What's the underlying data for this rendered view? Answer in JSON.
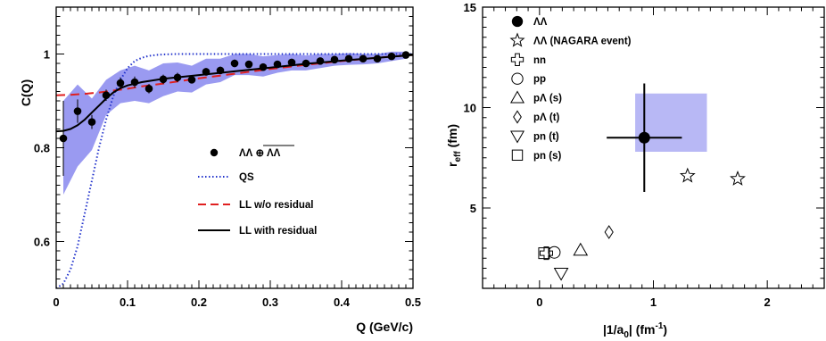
{
  "chart_data": [
    {
      "type": "line",
      "xlabel": "Q (GeV/c)",
      "ylabel": "C(Q)",
      "xlim": [
        0,
        0.5
      ],
      "ylim": [
        0.5,
        1.1
      ],
      "xticks": [
        "0",
        "0.1",
        "0.2",
        "0.3",
        "0.4",
        "0.5"
      ],
      "yticks": [
        "0.6",
        "0.8",
        "1"
      ],
      "grid": false,
      "legend_position": "center-right",
      "series": [
        {
          "name": "ΛΛ ⊕ ΛΛ",
          "kind": "points",
          "color": "#000000",
          "x": [
            0.01,
            0.03,
            0.05,
            0.07,
            0.09,
            0.11,
            0.13,
            0.15,
            0.17,
            0.19,
            0.21,
            0.23,
            0.25,
            0.27,
            0.29,
            0.31,
            0.33,
            0.35,
            0.37,
            0.39,
            0.41,
            0.43,
            0.45,
            0.47,
            0.49
          ],
          "y": [
            0.82,
            0.878,
            0.855,
            0.912,
            0.938,
            0.94,
            0.926,
            0.946,
            0.95,
            0.945,
            0.962,
            0.965,
            0.98,
            0.978,
            0.972,
            0.978,
            0.982,
            0.98,
            0.985,
            0.988,
            0.99,
            0.99,
            0.99,
            0.995,
            0.998
          ],
          "yerr": [
            0.08,
            0.025,
            0.015,
            0.012,
            0.012,
            0.012,
            0.01,
            0.01,
            0.01,
            0.008,
            0.008,
            0.008,
            0.008,
            0.007,
            0.007,
            0.006,
            0.006,
            0.006,
            0.005,
            0.005,
            0.005,
            0.005,
            0.005,
            0.005,
            0.005
          ],
          "band_lo": [
            0.7,
            0.76,
            0.795,
            0.87,
            0.895,
            0.9,
            0.895,
            0.91,
            0.92,
            0.918,
            0.935,
            0.94,
            0.955,
            0.955,
            0.952,
            0.96,
            0.965,
            0.965,
            0.97,
            0.975,
            0.977,
            0.978,
            0.98,
            0.985,
            0.99
          ],
          "band_hi": [
            0.9,
            0.935,
            0.905,
            0.945,
            0.965,
            0.975,
            0.965,
            0.98,
            0.982,
            0.975,
            0.99,
            0.99,
            1.0,
            1.0,
            0.995,
            0.998,
            1.0,
            0.997,
            1.0,
            1.0,
            1.002,
            1.0,
            1.0,
            1.005,
            1.005
          ]
        },
        {
          "name": "QS",
          "kind": "line",
          "dash": "dotted",
          "color": "#2233cc",
          "x": [
            0.0,
            0.01,
            0.02,
            0.03,
            0.04,
            0.05,
            0.06,
            0.07,
            0.08,
            0.09,
            0.1,
            0.11,
            0.12,
            0.13,
            0.14,
            0.15,
            0.17,
            0.2,
            0.3,
            0.4,
            0.5
          ],
          "y": [
            0.5,
            0.51,
            0.54,
            0.59,
            0.66,
            0.73,
            0.8,
            0.86,
            0.91,
            0.945,
            0.97,
            0.985,
            0.992,
            0.996,
            0.998,
            0.999,
            1.0,
            1.0,
            1.0,
            1.0,
            1.0
          ]
        },
        {
          "name": "LL w/o residual",
          "kind": "line",
          "dash": "dashed",
          "color": "#e02020",
          "x": [
            0.0,
            0.02,
            0.04,
            0.06,
            0.08,
            0.1,
            0.12,
            0.15,
            0.2,
            0.25,
            0.3,
            0.35,
            0.4,
            0.45,
            0.5
          ],
          "y": [
            0.912,
            0.913,
            0.915,
            0.918,
            0.922,
            0.926,
            0.931,
            0.937,
            0.948,
            0.958,
            0.968,
            0.977,
            0.985,
            0.992,
            0.998
          ]
        },
        {
          "name": "LL with residual",
          "kind": "line",
          "dash": "solid",
          "color": "#000000",
          "x": [
            0.0,
            0.01,
            0.02,
            0.03,
            0.04,
            0.05,
            0.06,
            0.07,
            0.08,
            0.09,
            0.1,
            0.12,
            0.15,
            0.2,
            0.25,
            0.3,
            0.35,
            0.4,
            0.45,
            0.5
          ],
          "y": [
            0.835,
            0.836,
            0.84,
            0.848,
            0.86,
            0.875,
            0.89,
            0.905,
            0.918,
            0.927,
            0.933,
            0.94,
            0.947,
            0.955,
            0.963,
            0.971,
            0.979,
            0.986,
            0.992,
            0.998
          ]
        }
      ]
    },
    {
      "type": "scatter",
      "xlabel": "|1/a0| (fm-1)",
      "xlabel_main": "|1/a",
      "xlabel_sub": "0",
      "xlabel_end": "| (fm",
      "xlabel_sup": "-1",
      "xlabel_close": ")",
      "ylabel": "reff (fm)",
      "ylabel_main": "r",
      "ylabel_sub": "eff",
      "ylabel_end": " (fm)",
      "xlim": [
        -0.5,
        2.5
      ],
      "ylim": [
        1,
        15
      ],
      "xticks": [
        "0",
        "1",
        "2"
      ],
      "yticks": [
        "5",
        "10",
        "15"
      ],
      "grid": false,
      "legend_position": "top-left",
      "legend": [
        {
          "label": "ΛΛ",
          "marker": "filled-circle"
        },
        {
          "label": "ΛΛ (NAGARA event)",
          "marker": "star"
        },
        {
          "label": "nn",
          "marker": "cross"
        },
        {
          "label": "pp",
          "marker": "circle"
        },
        {
          "label": "pΛ (s)",
          "marker": "triangle-up"
        },
        {
          "label": "pΛ (t)",
          "marker": "diamond"
        },
        {
          "label": "pn (t)",
          "marker": "triangle-down"
        },
        {
          "label": "pn (s)",
          "marker": "square"
        }
      ],
      "points": [
        {
          "series": "ΛΛ",
          "marker": "filled-circle",
          "x": 0.92,
          "y": 8.5,
          "xerr": 0.33,
          "yerr": 2.7,
          "band_x": [
            0.84,
            1.47
          ],
          "band_y": [
            7.8,
            10.7
          ]
        },
        {
          "series": "ΛΛ (NAGARA event)",
          "marker": "star",
          "x": 1.3,
          "y": 6.6
        },
        {
          "series": "ΛΛ (NAGARA event)",
          "marker": "star",
          "x": 1.74,
          "y": 6.45
        },
        {
          "series": "nn",
          "marker": "cross",
          "x": 0.06,
          "y": 2.75
        },
        {
          "series": "pp",
          "marker": "circle",
          "x": 0.13,
          "y": 2.79
        },
        {
          "series": "pΛ (s)",
          "marker": "triangle-up",
          "x": 0.36,
          "y": 2.9
        },
        {
          "series": "pΛ (t)",
          "marker": "diamond",
          "x": 0.61,
          "y": 3.8
        },
        {
          "series": "pn (t)",
          "marker": "triangle-down",
          "x": 0.19,
          "y": 1.75
        },
        {
          "series": "pn (s)",
          "marker": "square",
          "x": 0.04,
          "y": 2.75
        }
      ]
    }
  ],
  "colors": {
    "band": "#8888ee",
    "qs": "#2233cc",
    "ll_wo": "#e02020",
    "ll_with": "#000000"
  }
}
